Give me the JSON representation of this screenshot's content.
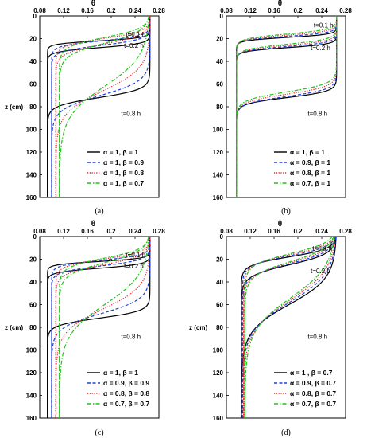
{
  "chart_data": [
    {
      "type": "line",
      "panel_label": "(a)",
      "xlabel": "θ",
      "ylabel": "z (cm)",
      "xlim": [
        0.08,
        0.28
      ],
      "ylim": [
        0,
        160
      ],
      "y_inverted": true,
      "x_ticks": [
        "0.08",
        "0.12",
        "0.16",
        "0.2",
        "0.24",
        "0.28"
      ],
      "y_ticks": [
        "0",
        "20",
        "40",
        "60",
        "80",
        "100",
        "120",
        "140",
        "160"
      ],
      "time_labels": [
        {
          "text": "t=0.1 h",
          "theta": 0.241,
          "z": 16
        },
        {
          "text": "t=0.2 h",
          "theta": 0.238,
          "z": 26
        },
        {
          "text": "t=0.8 h",
          "theta": 0.233,
          "z": 86
        }
      ],
      "legend": [
        "α = 1, β = 1",
        "α = 1, β = 0.9",
        "α = 1, β = 0.8",
        "α = 1, β = 0.7"
      ],
      "series": [
        {
          "name": "α = 1, β = 1",
          "color": "#000000",
          "dash": "solid",
          "profiles": [
            {
              "t": 0.1,
              "base": 0.093,
              "sat": 0.265,
              "zf": 22,
              "w": 3
            },
            {
              "t": 0.2,
              "base": 0.093,
              "sat": 0.265,
              "zf": 28,
              "w": 4
            },
            {
              "t": 0.8,
              "base": 0.093,
              "sat": 0.265,
              "zf": 72,
              "w": 8
            }
          ]
        },
        {
          "name": "α = 1, β = 0.9",
          "color": "#1f3fd6",
          "dash": "dashed",
          "profiles": [
            {
              "t": 0.1,
              "base": 0.1,
              "sat": 0.265,
              "zf": 22,
              "w": 5
            },
            {
              "t": 0.2,
              "base": 0.1,
              "sat": 0.265,
              "zf": 26,
              "w": 6
            },
            {
              "t": 0.8,
              "base": 0.1,
              "sat": 0.265,
              "zf": 70,
              "w": 14
            }
          ]
        },
        {
          "name": "α = 1, β = 0.8",
          "color": "#e8232a",
          "dash": "dotted",
          "profiles": [
            {
              "t": 0.1,
              "base": 0.107,
              "sat": 0.265,
              "zf": 20,
              "w": 7
            },
            {
              "t": 0.2,
              "base": 0.107,
              "sat": 0.265,
              "zf": 25,
              "w": 9
            },
            {
              "t": 0.8,
              "base": 0.107,
              "sat": 0.265,
              "zf": 66,
              "w": 22
            }
          ]
        },
        {
          "name": "α = 1, β = 0.7",
          "color": "#21c21a",
          "dash": "dashdot",
          "profiles": [
            {
              "t": 0.1,
              "base": 0.113,
              "sat": 0.265,
              "zf": 19,
              "w": 9
            },
            {
              "t": 0.2,
              "base": 0.113,
              "sat": 0.265,
              "zf": 24,
              "w": 12
            },
            {
              "t": 0.8,
              "base": 0.113,
              "sat": 0.265,
              "zf": 62,
              "w": 30
            }
          ]
        }
      ]
    },
    {
      "type": "line",
      "panel_label": "(b)",
      "xlabel": "θ",
      "ylabel": "",
      "xlim": [
        0.08,
        0.28
      ],
      "ylim": [
        0,
        160
      ],
      "y_inverted": true,
      "x_ticks": [
        "0.08",
        "0.12",
        "0.16",
        "0.2",
        "0.24",
        "0.28"
      ],
      "y_ticks": [
        "0",
        "20",
        "40",
        "60",
        "80",
        "100",
        "120",
        "140",
        "160"
      ],
      "time_labels": [
        {
          "text": "t=0.1 h",
          "theta": 0.243,
          "z": 8
        },
        {
          "text": "t=0.2 h",
          "theta": 0.238,
          "z": 28
        },
        {
          "text": "t=0.8 h",
          "theta": 0.233,
          "z": 86
        }
      ],
      "legend": [
        "α = 1, β = 1",
        "α = 0.9, β = 1",
        "α = 0.8, β = 1",
        "α = 0.7, β = 1"
      ],
      "series": [
        {
          "name": "α = 1, β = 1",
          "color": "#000000",
          "dash": "solid",
          "profiles": [
            {
              "t": 0.1,
              "base": 0.097,
              "sat": 0.265,
              "zf": 19,
              "w": 3
            },
            {
              "t": 0.2,
              "base": 0.097,
              "sat": 0.265,
              "zf": 28,
              "w": 3.5
            },
            {
              "t": 0.8,
              "base": 0.097,
              "sat": 0.265,
              "zf": 72,
              "w": 6
            }
          ]
        },
        {
          "name": "α = 0.9, β = 1",
          "color": "#1f3fd6",
          "dash": "dashed",
          "profiles": [
            {
              "t": 0.1,
              "base": 0.097,
              "sat": 0.265,
              "zf": 18,
              "w": 3.5
            },
            {
              "t": 0.2,
              "base": 0.097,
              "sat": 0.265,
              "zf": 27,
              "w": 4
            },
            {
              "t": 0.8,
              "base": 0.097,
              "sat": 0.265,
              "zf": 71,
              "w": 7
            }
          ]
        },
        {
          "name": "α = 0.8, β = 1",
          "color": "#e8232a",
          "dash": "dotted",
          "profiles": [
            {
              "t": 0.1,
              "base": 0.097,
              "sat": 0.265,
              "zf": 17,
              "w": 4
            },
            {
              "t": 0.2,
              "base": 0.097,
              "sat": 0.265,
              "zf": 26,
              "w": 4.5
            },
            {
              "t": 0.8,
              "base": 0.097,
              "sat": 0.265,
              "zf": 69,
              "w": 7.5
            }
          ]
        },
        {
          "name": "α = 0.7, β = 1",
          "color": "#21c21a",
          "dash": "dashdot",
          "profiles": [
            {
              "t": 0.1,
              "base": 0.097,
              "sat": 0.265,
              "zf": 16,
              "w": 4.5
            },
            {
              "t": 0.2,
              "base": 0.097,
              "sat": 0.265,
              "zf": 25,
              "w": 5
            },
            {
              "t": 0.8,
              "base": 0.097,
              "sat": 0.265,
              "zf": 67,
              "w": 8
            }
          ]
        }
      ]
    },
    {
      "type": "line",
      "panel_label": "(c)",
      "xlabel": "θ",
      "ylabel": "z (cm)",
      "xlim": [
        0.08,
        0.28
      ],
      "ylim": [
        0,
        160
      ],
      "y_inverted": true,
      "x_ticks": [
        "0.08",
        "0.12",
        "0.16",
        "0.2",
        "0.24",
        "0.28"
      ],
      "y_ticks": [
        "0",
        "20",
        "40",
        "60",
        "80",
        "100",
        "120",
        "140",
        "160"
      ],
      "time_labels": [
        {
          "text": "t=0.1 h",
          "theta": 0.241,
          "z": 16
        },
        {
          "text": "t=0.2 h",
          "theta": 0.238,
          "z": 26
        },
        {
          "text": "t=0.8 h",
          "theta": 0.233,
          "z": 88
        }
      ],
      "legend": [
        "α = 1, β = 1",
        "α = 0.9, β = 0.9",
        "α = 0.8, β = 0.8",
        "α = 0.7, β = 0.7"
      ],
      "series": [
        {
          "name": "α = 1, β = 1",
          "color": "#000000",
          "dash": "solid",
          "profiles": [
            {
              "t": 0.1,
              "base": 0.093,
              "sat": 0.265,
              "zf": 22,
              "w": 3
            },
            {
              "t": 0.2,
              "base": 0.093,
              "sat": 0.265,
              "zf": 28,
              "w": 4
            },
            {
              "t": 0.8,
              "base": 0.093,
              "sat": 0.265,
              "zf": 72,
              "w": 7
            }
          ]
        },
        {
          "name": "α = 0.9, β = 0.9",
          "color": "#1f3fd6",
          "dash": "dashed",
          "profiles": [
            {
              "t": 0.1,
              "base": 0.1,
              "sat": 0.265,
              "zf": 21,
              "w": 5
            },
            {
              "t": 0.2,
              "base": 0.1,
              "sat": 0.265,
              "zf": 26,
              "w": 6
            },
            {
              "t": 0.8,
              "base": 0.1,
              "sat": 0.265,
              "zf": 68,
              "w": 14
            }
          ]
        },
        {
          "name": "α = 0.8, β = 0.8",
          "color": "#e8232a",
          "dash": "dotted",
          "profiles": [
            {
              "t": 0.1,
              "base": 0.107,
              "sat": 0.265,
              "zf": 20,
              "w": 7
            },
            {
              "t": 0.2,
              "base": 0.107,
              "sat": 0.265,
              "zf": 25,
              "w": 9
            },
            {
              "t": 0.8,
              "base": 0.107,
              "sat": 0.265,
              "zf": 64,
              "w": 22
            }
          ]
        },
        {
          "name": "α = 0.7, β = 0.7",
          "color": "#21c21a",
          "dash": "dashdot",
          "profiles": [
            {
              "t": 0.1,
              "base": 0.113,
              "sat": 0.265,
              "zf": 19,
              "w": 9
            },
            {
              "t": 0.2,
              "base": 0.113,
              "sat": 0.265,
              "zf": 23,
              "w": 12
            },
            {
              "t": 0.8,
              "base": 0.113,
              "sat": 0.265,
              "zf": 60,
              "w": 30
            }
          ]
        }
      ]
    },
    {
      "type": "line",
      "panel_label": "(d)",
      "xlabel": "θ",
      "ylabel": "z (cm)",
      "xlim": [
        0.08,
        0.28
      ],
      "ylim": [
        0,
        160
      ],
      "y_inverted": true,
      "x_ticks": [
        "0.08",
        "0.12",
        "0.16",
        "0.2",
        "0.24",
        "0.28"
      ],
      "y_ticks": [
        "0",
        "20",
        "40",
        "60",
        "80",
        "100",
        "120",
        "140",
        "160"
      ],
      "time_labels": [
        {
          "text": "t=0.1 h",
          "theta": 0.241,
          "z": 10
        },
        {
          "text": "t=0.2 h",
          "theta": 0.238,
          "z": 30
        },
        {
          "text": "t=0.8 h",
          "theta": 0.233,
          "z": 88
        }
      ],
      "legend": [
        "α = 1     , β = 0.7",
        "α = 0.9, β = 0.7",
        "α = 0.8, β = 0.7",
        "α = 0.7, β = 0.7"
      ],
      "series": [
        {
          "name": "α = 1     , β = 0.7",
          "color": "#000000",
          "dash": "solid",
          "profiles": [
            {
              "t": 0.1,
              "base": 0.105,
              "sat": 0.265,
              "zf": 18,
              "w": 8
            },
            {
              "t": 0.2,
              "base": 0.105,
              "sat": 0.265,
              "zf": 25,
              "w": 11
            },
            {
              "t": 0.8,
              "base": 0.105,
              "sat": 0.265,
              "zf": 60,
              "w": 26
            }
          ]
        },
        {
          "name": "α = 0.9, β = 0.7",
          "color": "#1f3fd6",
          "dash": "dashed",
          "profiles": [
            {
              "t": 0.1,
              "base": 0.107,
              "sat": 0.265,
              "zf": 17,
              "w": 9
            },
            {
              "t": 0.2,
              "base": 0.107,
              "sat": 0.265,
              "zf": 24,
              "w": 12
            },
            {
              "t": 0.8,
              "base": 0.107,
              "sat": 0.265,
              "zf": 58,
              "w": 28
            }
          ]
        },
        {
          "name": "α = 0.8, β = 0.7",
          "color": "#e8232a",
          "dash": "dotted",
          "profiles": [
            {
              "t": 0.1,
              "base": 0.109,
              "sat": 0.265,
              "zf": 16,
              "w": 10
            },
            {
              "t": 0.2,
              "base": 0.109,
              "sat": 0.265,
              "zf": 23,
              "w": 13
            },
            {
              "t": 0.8,
              "base": 0.109,
              "sat": 0.265,
              "zf": 56,
              "w": 30
            }
          ]
        },
        {
          "name": "α = 0.7, β = 0.7",
          "color": "#21c21a",
          "dash": "dashdot",
          "profiles": [
            {
              "t": 0.1,
              "base": 0.111,
              "sat": 0.265,
              "zf": 15,
              "w": 11
            },
            {
              "t": 0.2,
              "base": 0.111,
              "sat": 0.265,
              "zf": 22,
              "w": 14
            },
            {
              "t": 0.8,
              "base": 0.111,
              "sat": 0.265,
              "zf": 54,
              "w": 32
            }
          ]
        }
      ]
    }
  ]
}
